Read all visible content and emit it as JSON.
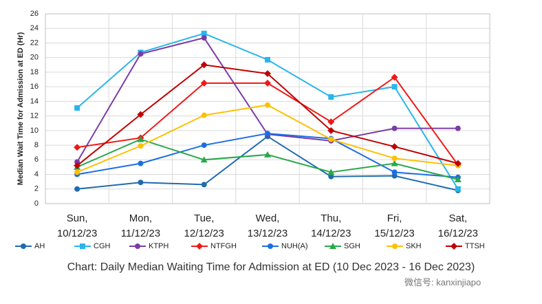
{
  "chart_data": {
    "type": "line",
    "y_label": "Median Wait Time for Admission at ED (Hr)",
    "caption": "Chart: Daily Median Waiting Time for Admission at ED (10 Dec 2023 - 16 Dec 2023)",
    "watermark": "微信号: kanxinjiapo",
    "categories": [
      "Sun, 10/12/23",
      "Mon, 11/12/23",
      "Tue, 12/12/23",
      "Wed, 13/12/23",
      "Thu, 14/12/23",
      "Fri, 15/12/23",
      "Sat, 16/12/23"
    ],
    "ylim": [
      0,
      26
    ],
    "yticks": [
      0,
      2,
      4,
      6,
      8,
      10,
      12,
      14,
      16,
      18,
      20,
      22,
      24,
      26
    ],
    "grid": true,
    "legend": "bottom",
    "series": [
      {
        "name": "AH",
        "color": "#1f6bb0",
        "marker": "circle",
        "values": [
          2.0,
          2.9,
          2.6,
          9.2,
          3.7,
          3.8,
          1.8
        ]
      },
      {
        "name": "CGH",
        "color": "#29b5ea",
        "marker": "square",
        "values": [
          13.1,
          20.7,
          23.3,
          19.7,
          14.6,
          16.0,
          2.0
        ]
      },
      {
        "name": "KTPH",
        "color": "#7a3ca8",
        "marker": "circle",
        "values": [
          5.7,
          20.5,
          22.7,
          9.5,
          8.6,
          10.3,
          10.3
        ]
      },
      {
        "name": "NTFGH",
        "color": "#f01818",
        "marker": "diamond",
        "values": [
          7.7,
          9.0,
          16.5,
          16.5,
          11.2,
          17.3,
          5.3
        ]
      },
      {
        "name": "NUH(A)",
        "color": "#1c6ee6",
        "marker": "circle",
        "values": [
          4.0,
          5.5,
          8.0,
          9.6,
          8.9,
          4.3,
          3.6
        ]
      },
      {
        "name": "SGH",
        "color": "#2aa84a",
        "marker": "triangle",
        "values": [
          5.0,
          8.8,
          6.0,
          6.7,
          4.3,
          5.5,
          3.3
        ]
      },
      {
        "name": "SKH",
        "color": "#ffc000",
        "marker": "circle",
        "values": [
          4.3,
          7.9,
          12.1,
          13.5,
          8.8,
          6.2,
          5.2
        ]
      },
      {
        "name": "TTSH",
        "color": "#c00000",
        "marker": "diamond",
        "values": [
          5.2,
          12.2,
          19.0,
          17.8,
          10.0,
          7.8,
          5.5
        ]
      }
    ]
  }
}
